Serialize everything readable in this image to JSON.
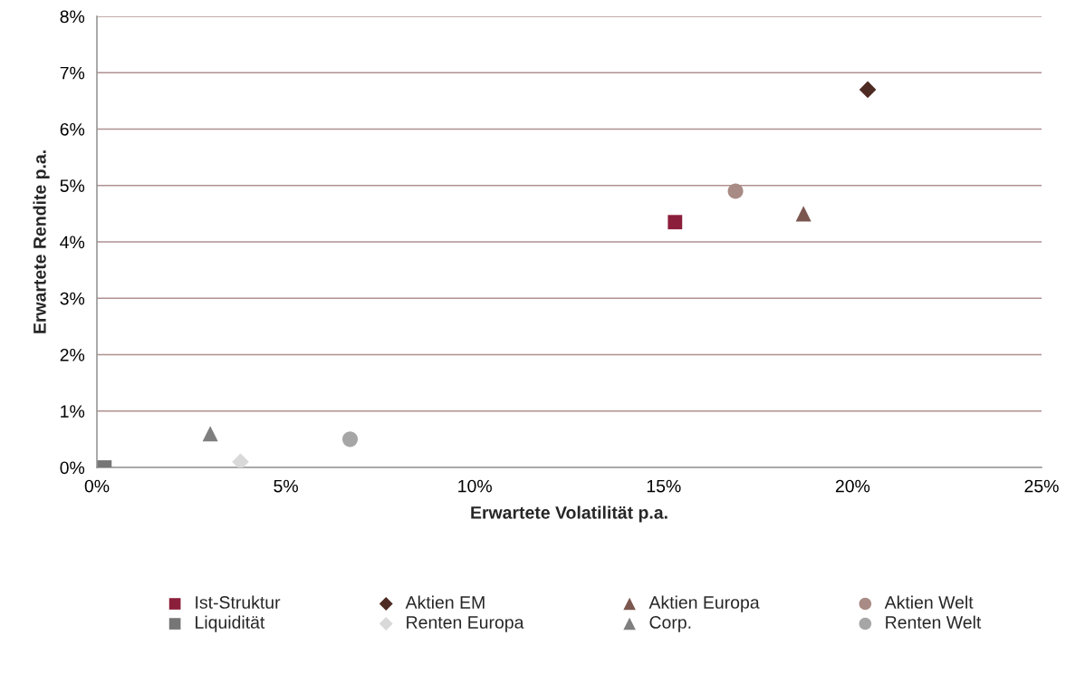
{
  "chart_data": {
    "type": "scatter",
    "xlabel": "Erwartete Volatilität p.a.",
    "ylabel": "Erwartete Rendite p.a.",
    "xlim": [
      0,
      25
    ],
    "xticks": [
      {
        "value": 0,
        "label": "0%"
      },
      {
        "value": 5,
        "label": "5%"
      },
      {
        "value": 10,
        "label": "10%"
      },
      {
        "value": 15,
        "label": "15%"
      },
      {
        "value": 20,
        "label": "20%"
      },
      {
        "value": 25,
        "label": "25%"
      }
    ],
    "ylim": [
      0,
      8
    ],
    "yticks": [
      {
        "value": 0,
        "label": "0%"
      },
      {
        "value": 1,
        "label": "1%"
      },
      {
        "value": 2,
        "label": "2%"
      },
      {
        "value": 3,
        "label": "3%"
      },
      {
        "value": 4,
        "label": "4%"
      },
      {
        "value": 5,
        "label": "5%"
      },
      {
        "value": 6,
        "label": "6%"
      },
      {
        "value": 7,
        "label": "7%"
      },
      {
        "value": 8,
        "label": "8%"
      }
    ],
    "grid": "y",
    "legend": "bottom",
    "series": [
      {
        "name": "Ist-Struktur",
        "color": "#8b1e3a",
        "marker": "square",
        "x": [
          15.3
        ],
        "values": [
          4.35
        ]
      },
      {
        "name": "Liquidität",
        "color": "#767676",
        "marker": "square",
        "x": [
          0.2
        ],
        "values": [
          0
        ]
      },
      {
        "name": "Aktien EM",
        "color": "#4d2a22",
        "marker": "diamond",
        "x": [
          20.4
        ],
        "values": [
          6.7
        ]
      },
      {
        "name": "Renten Europa",
        "color": "#d9d9d9",
        "marker": "diamond",
        "x": [
          3.8
        ],
        "values": [
          0.1
        ]
      },
      {
        "name": "Aktien Europa",
        "color": "#7b5750",
        "marker": "triangle",
        "x": [
          18.7
        ],
        "values": [
          4.5
        ]
      },
      {
        "name": "Corp.",
        "color": "#7f7f7f",
        "marker": "triangle",
        "x": [
          3.0
        ],
        "values": [
          0.6
        ]
      },
      {
        "name": "Aktien Welt",
        "color": "#a88b84",
        "marker": "circle",
        "x": [
          16.9
        ],
        "values": [
          4.9
        ]
      },
      {
        "name": "Renten Welt",
        "color": "#a6a6a6",
        "marker": "circle",
        "x": [
          6.7
        ],
        "values": [
          0.5
        ]
      }
    ]
  }
}
